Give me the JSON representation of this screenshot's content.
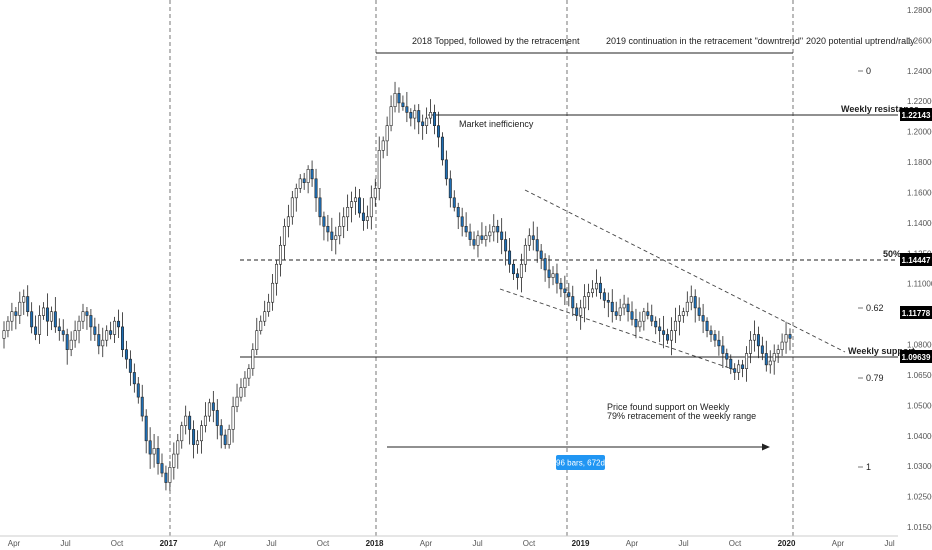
{
  "chart_data": {
    "type": "candlestick",
    "series": "weekly",
    "ylim": [
      1.015,
      1.29
    ],
    "y_ticks": [
      "1.28000",
      "1.26000",
      "1.24000",
      "1.22000",
      "1.20000",
      "1.18000",
      "1.16000",
      "1.14000",
      "1.12500",
      "1.11000",
      "1.09500",
      "1.08000",
      "1.06500",
      "1.05000",
      "1.04000",
      "1.03000",
      "1.02500",
      "1.01500"
    ],
    "x_ticks": [
      {
        "label": "Apr",
        "year": false
      },
      {
        "label": "Jul",
        "year": false
      },
      {
        "label": "Oct",
        "year": false
      },
      {
        "label": "2017",
        "year": true
      },
      {
        "label": "Apr",
        "year": false
      },
      {
        "label": "Jul",
        "year": false
      },
      {
        "label": "Oct",
        "year": false
      },
      {
        "label": "2018",
        "year": true
      },
      {
        "label": "Apr",
        "year": false
      },
      {
        "label": "Jul",
        "year": false
      },
      {
        "label": "Oct",
        "year": false
      },
      {
        "label": "2019",
        "year": true
      },
      {
        "label": "Apr",
        "year": false
      },
      {
        "label": "Jul",
        "year": false
      },
      {
        "label": "Oct",
        "year": false
      },
      {
        "label": "2020",
        "year": true
      },
      {
        "label": "Apr",
        "year": false
      },
      {
        "label": "Jul",
        "year": false
      }
    ],
    "closes": [
      1.12,
      1.125,
      1.13,
      1.128,
      1.135,
      1.138,
      1.13,
      1.122,
      1.118,
      1.128,
      1.132,
      1.125,
      1.13,
      1.122,
      1.12,
      1.118,
      1.11,
      1.115,
      1.12,
      1.125,
      1.13,
      1.128,
      1.122,
      1.118,
      1.112,
      1.115,
      1.12,
      1.118,
      1.125,
      1.122,
      1.11,
      1.105,
      1.098,
      1.092,
      1.085,
      1.075,
      1.062,
      1.055,
      1.058,
      1.05,
      1.045,
      1.04,
      1.048,
      1.055,
      1.062,
      1.07,
      1.075,
      1.068,
      1.06,
      1.062,
      1.07,
      1.075,
      1.082,
      1.078,
      1.07,
      1.065,
      1.06,
      1.068,
      1.08,
      1.085,
      1.09,
      1.095,
      1.1,
      1.11,
      1.12,
      1.125,
      1.13,
      1.135,
      1.145,
      1.155,
      1.165,
      1.175,
      1.18,
      1.19,
      1.195,
      1.2,
      1.198,
      1.205,
      1.2,
      1.19,
      1.18,
      1.175,
      1.172,
      1.168,
      1.17,
      1.175,
      1.18,
      1.185,
      1.188,
      1.19,
      1.182,
      1.178,
      1.18,
      1.19,
      1.195,
      1.215,
      1.22,
      1.228,
      1.238,
      1.245,
      1.24,
      1.238,
      1.235,
      1.232,
      1.236,
      1.23,
      1.228,
      1.232,
      1.235,
      1.228,
      1.222,
      1.21,
      1.2,
      1.19,
      1.185,
      1.18,
      1.175,
      1.172,
      1.168,
      1.165,
      1.17,
      1.168,
      1.17,
      1.172,
      1.175,
      1.172,
      1.168,
      1.162,
      1.155,
      1.15,
      1.148,
      1.155,
      1.165,
      1.17,
      1.168,
      1.162,
      1.158,
      1.152,
      1.148,
      1.15,
      1.145,
      1.142,
      1.14,
      1.138,
      1.132,
      1.128,
      1.132,
      1.138,
      1.14,
      1.142,
      1.145,
      1.14,
      1.136,
      1.135,
      1.13,
      1.128,
      1.132,
      1.134,
      1.13,
      1.126,
      1.122,
      1.125,
      1.13,
      1.128,
      1.125,
      1.122,
      1.12,
      1.118,
      1.115,
      1.12,
      1.125,
      1.128,
      1.13,
      1.135,
      1.138,
      1.132,
      1.128,
      1.125,
      1.12,
      1.118,
      1.115,
      1.112,
      1.108,
      1.105,
      1.1,
      1.098,
      1.102,
      1.1,
      1.108,
      1.115,
      1.118,
      1.112,
      1.108,
      1.102,
      1.104,
      1.108,
      1.11,
      1.114,
      1.118,
      1.116
    ]
  },
  "y_axis": {
    "level_labels": {
      "weekly_resistance": {
        "value": "1.22143",
        "text": "Weekly resistance"
      },
      "fifty": {
        "value": "1.14447",
        "text": "50%"
      },
      "current": {
        "value": "1.11778"
      },
      "weekly_support": {
        "value": "1.09639",
        "text": "Weekly support"
      }
    }
  },
  "fib_labels": {
    "zero": "0",
    "p62": "0.62",
    "p79": "0.79",
    "one": "1"
  },
  "annotations": {
    "top_2018": "2018 Topped, followed by the retracement",
    "top_2019": "2019 continuation in the retracement \"downtrend\"",
    "top_2020": "2020 potential uptrend/rally",
    "market_inefficiency": "Market inefficiency",
    "support_note_1": "Price found support on Weekly",
    "support_note_2": "79% retracement of the weekly range",
    "measure_badge": "96 bars, 672d"
  },
  "colors": {
    "bull": "#ffffff",
    "bear": "#1f6fb5",
    "wick": "#222222",
    "axis_text": "#555555",
    "label_bg": "#000000",
    "badge_bg": "#2196f3",
    "xtick_red": "#c0392b"
  }
}
